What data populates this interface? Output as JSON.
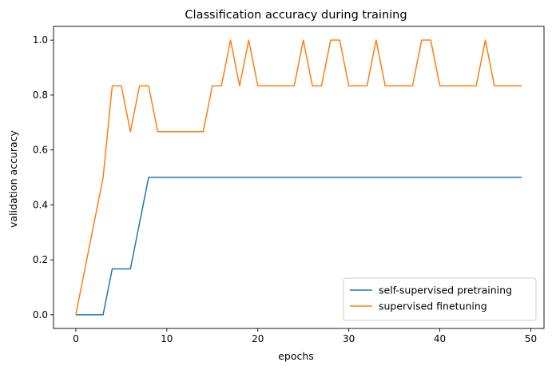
{
  "chart_data": {
    "type": "line",
    "title": "Classification accuracy during training",
    "xlabel": "epochs",
    "ylabel": "validation accuracy",
    "xlim": [
      -2.45,
      51.45
    ],
    "ylim": [
      -0.05,
      1.05
    ],
    "xticks": [
      0,
      10,
      20,
      30,
      40,
      50
    ],
    "xtick_labels": [
      "0",
      "10",
      "20",
      "30",
      "40",
      "50"
    ],
    "yticks": [
      0.0,
      0.2,
      0.4,
      0.6,
      0.8,
      1.0
    ],
    "ytick_labels": [
      "0.0",
      "0.2",
      "0.4",
      "0.6",
      "0.8",
      "1.0"
    ],
    "grid": false,
    "legend_position": "lower-right",
    "x": [
      0,
      1,
      2,
      3,
      4,
      5,
      6,
      7,
      8,
      9,
      10,
      11,
      12,
      13,
      14,
      15,
      16,
      17,
      18,
      19,
      20,
      21,
      22,
      23,
      24,
      25,
      26,
      27,
      28,
      29,
      30,
      31,
      32,
      33,
      34,
      35,
      36,
      37,
      38,
      39,
      40,
      41,
      42,
      43,
      44,
      45,
      46,
      47,
      48,
      49
    ],
    "series": [
      {
        "name": "self-supervised pretraining",
        "color": "#1f77b4",
        "values": [
          0,
          0,
          0,
          0,
          0.1667,
          0.1667,
          0.1667,
          0.3333,
          0.5,
          0.5,
          0.5,
          0.5,
          0.5,
          0.5,
          0.5,
          0.5,
          0.5,
          0.5,
          0.5,
          0.5,
          0.5,
          0.5,
          0.5,
          0.5,
          0.5,
          0.5,
          0.5,
          0.5,
          0.5,
          0.5,
          0.5,
          0.5,
          0.5,
          0.5,
          0.5,
          0.5,
          0.5,
          0.5,
          0.5,
          0.5,
          0.5,
          0.5,
          0.5,
          0.5,
          0.5,
          0.5,
          0.5,
          0.5,
          0.5,
          0.5
        ]
      },
      {
        "name": "supervised finetuning",
        "color": "#ff7f0e",
        "values": [
          0,
          0.1667,
          0.3333,
          0.5,
          0.8333,
          0.8333,
          0.6667,
          0.8333,
          0.8333,
          0.6667,
          0.6667,
          0.6667,
          0.6667,
          0.6667,
          0.6667,
          0.8333,
          0.8333,
          1.0,
          0.8333,
          1.0,
          0.8333,
          0.8333,
          0.8333,
          0.8333,
          0.8333,
          1.0,
          0.8333,
          0.8333,
          1.0,
          1.0,
          0.8333,
          0.8333,
          0.8333,
          1.0,
          0.8333,
          0.8333,
          0.8333,
          0.8333,
          1.0,
          1.0,
          0.8333,
          0.8333,
          0.8333,
          0.8333,
          0.8333,
          1.0,
          0.8333,
          0.8333,
          0.8333,
          0.8333
        ]
      }
    ]
  }
}
